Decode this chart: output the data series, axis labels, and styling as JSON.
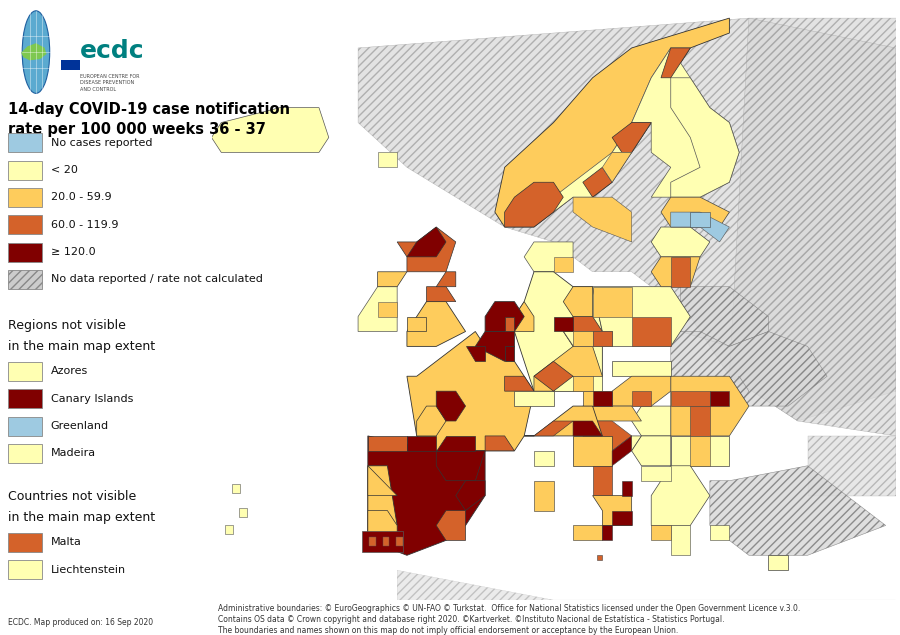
{
  "title_line1": "14-day COVID-19 case notification",
  "title_line2": "rate per 100 000 weeks 36 - 37",
  "title_fontsize": 10.5,
  "background_color": "#ffffff",
  "ocean_color": "#c8e0f0",
  "nodata_land_color": "#d8d8d8",
  "legend_items": [
    {
      "label": "No cases reported",
      "color": "#9ecae1"
    },
    {
      "label": "< 20",
      "color": "#ffffb2"
    },
    {
      "label": "20.0 - 59.9",
      "color": "#fecc5c"
    },
    {
      "label": "60.0 - 119.9",
      "color": "#d4622a"
    },
    {
      "label": "≥ 120.0",
      "color": "#800000"
    },
    {
      "label": "No data reported / rate not calculated",
      "color": "hatched"
    }
  ],
  "regions_not_visible": [
    {
      "label": "Azores",
      "color": "#ffffb2"
    },
    {
      "label": "Canary Islands",
      "color": "#800000"
    },
    {
      "label": "Greenland",
      "color": "#9ecae1"
    },
    {
      "label": "Madeira",
      "color": "#ffffb2"
    }
  ],
  "countries_not_visible": [
    {
      "label": "Malta",
      "color": "#d4622a"
    },
    {
      "label": "Liechtenstein",
      "color": "#ffffb2"
    }
  ],
  "footer_left": "ECDC. Map produced on: 16 Sep 2020",
  "footer_right_line1": "Administrative boundaries: © EuroGeographics © UN-FAO © Turkstat.  Office for National Statistics licensed under the Open Government Licence v.3.0.",
  "footer_right_line2": "Contains OS data © Crown copyright and database right 2020. ©Kartverket. ©Instituto Nacional de Estatística - Statistics Portugal.",
  "footer_right_line3": "The boundaries and names shown on this map do not imply official endorsement or acceptance by the European Union.",
  "legend_fontsize": 8,
  "hatch_color": "#aaaaaa",
  "map_border_color": "#555555",
  "map_border_lw": 0.3,
  "country_border_color": "#333333",
  "country_border_lw": 0.7
}
